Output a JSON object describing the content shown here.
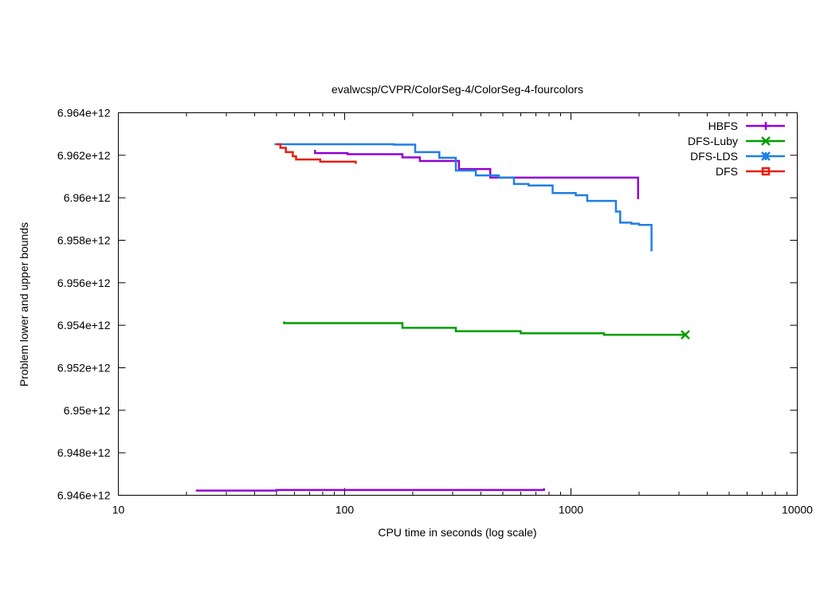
{
  "chart_data": {
    "type": "line",
    "title": "evalwcsp/CVPR/ColorSeg-4/ColorSeg-4-fourcolors",
    "xlabel": "CPU time in seconds (log scale)",
    "ylabel": "Problem lower and upper bounds",
    "xscale": "log",
    "xlim": [
      10,
      10000
    ],
    "ylim": [
      6946000000000.0,
      6964000000000.0
    ],
    "xticks": [
      10,
      100,
      1000,
      10000
    ],
    "xtick_labels": [
      "10",
      "100",
      "1000",
      "10000"
    ],
    "yticks": [
      6946000000000.0,
      6948000000000.0,
      6950000000000.0,
      6952000000000.0,
      6954000000000.0,
      6956000000000.0,
      6958000000000.0,
      6960000000000.0,
      6962000000000.0,
      6964000000000.0
    ],
    "ytick_labels": [
      "6.946e+12",
      "6.948e+12",
      "6.95e+12",
      "6.952e+12",
      "6.954e+12",
      "6.956e+12",
      "6.958e+12",
      "6.96e+12",
      "6.962e+12",
      "6.964e+12"
    ],
    "grid": false,
    "legend_position": "top-right",
    "series": [
      {
        "name": "HBFS",
        "color": "#9400d3",
        "marker": "plus",
        "lines": [
          [
            [
              74,
              6962250000000.0
            ],
            [
              74,
              6962100000000.0
            ],
            [
              103,
              6962100000000.0
            ],
            [
              103,
              6962050000000.0
            ],
            [
              180,
              6962050000000.0
            ],
            [
              180,
              6961900000000.0
            ],
            [
              215,
              6961900000000.0
            ],
            [
              215,
              6961730000000.0
            ],
            [
              320,
              6961730000000.0
            ],
            [
              320,
              6961350000000.0
            ],
            [
              440,
              6961350000000.0
            ],
            [
              440,
              6960950000000.0
            ],
            [
              1980,
              6960950000000.0
            ],
            [
              1980,
              6959930000000.0
            ]
          ],
          [
            [
              22,
              6946220000000.0
            ],
            [
              50,
              6946220000000.0
            ],
            [
              50,
              6946250000000.0
            ],
            [
              760,
              6946250000000.0
            ],
            [
              760,
              6946330000000.0
            ]
          ]
        ],
        "end_marker": null
      },
      {
        "name": "DFS-Luby",
        "color": "#009e00",
        "marker": "x",
        "lines": [
          [
            [
              54,
              6954180000000.0
            ],
            [
              54,
              6954100000000.0
            ],
            [
              180,
              6954100000000.0
            ],
            [
              180,
              6953880000000.0
            ],
            [
              310,
              6953880000000.0
            ],
            [
              310,
              6953720000000.0
            ],
            [
              600,
              6953720000000.0
            ],
            [
              600,
              6953620000000.0
            ],
            [
              1400,
              6953620000000.0
            ],
            [
              1400,
              6953550000000.0
            ],
            [
              3200,
              6953550000000.0
            ]
          ]
        ],
        "end_marker": [
          3200,
          6953550000000.0
        ]
      },
      {
        "name": "DFS-LDS",
        "color": "#1e7fe6",
        "marker": "star",
        "lines": [
          [
            [
              49,
              6962520000000.0
            ],
            [
              165,
              6962520000000.0
            ],
            [
              165,
              6962500000000.0
            ],
            [
              205,
              6962500000000.0
            ],
            [
              205,
              6962150000000.0
            ],
            [
              262,
              6962150000000.0
            ],
            [
              262,
              6961880000000.0
            ],
            [
              310,
              6961880000000.0
            ],
            [
              310,
              6961280000000.0
            ],
            [
              380,
              6961280000000.0
            ],
            [
              380,
              6961050000000.0
            ],
            [
              480,
              6961050000000.0
            ],
            [
              480,
              6960950000000.0
            ],
            [
              560,
              6960950000000.0
            ],
            [
              560,
              6960650000000.0
            ],
            [
              650,
              6960650000000.0
            ],
            [
              650,
              6960580000000.0
            ],
            [
              830,
              6960580000000.0
            ],
            [
              830,
              6960220000000.0
            ],
            [
              1050,
              6960220000000.0
            ],
            [
              1050,
              6960120000000.0
            ],
            [
              1180,
              6960120000000.0
            ],
            [
              1180,
              6959850000000.0
            ],
            [
              1580,
              6959850000000.0
            ],
            [
              1580,
              6959350000000.0
            ],
            [
              1650,
              6959350000000.0
            ],
            [
              1650,
              6958830000000.0
            ],
            [
              1850,
              6958830000000.0
            ],
            [
              1850,
              6958780000000.0
            ],
            [
              2000,
              6958780000000.0
            ],
            [
              2000,
              6958720000000.0
            ],
            [
              2270,
              6958720000000.0
            ],
            [
              2270,
              6957480000000.0
            ]
          ]
        ],
        "end_marker": null
      },
      {
        "name": "DFS",
        "color": "#e51e10",
        "marker": "square",
        "lines": [
          [
            [
              50,
              6962520000000.0
            ],
            [
              52,
              6962520000000.0
            ],
            [
              52,
              6962350000000.0
            ],
            [
              55,
              6962350000000.0
            ],
            [
              55,
              6962150000000.0
            ],
            [
              59,
              6962150000000.0
            ],
            [
              59,
              6961950000000.0
            ],
            [
              61,
              6961950000000.0
            ],
            [
              61,
              6961800000000.0
            ],
            [
              78,
              6961800000000.0
            ],
            [
              78,
              6961700000000.0
            ],
            [
              112,
              6961700000000.0
            ],
            [
              112,
              6961600000000.0
            ]
          ]
        ],
        "end_marker": null
      }
    ]
  }
}
